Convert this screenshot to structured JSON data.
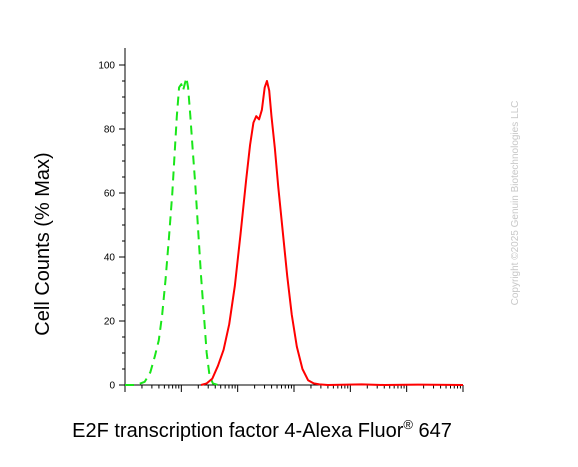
{
  "chart_data": {
    "type": "line",
    "xlabel": "E2F transcription factor 4-Alexa Fluor",
    "xlabel_sup": "®",
    "xlabel_suffix": " 647",
    "ylabel": "Cell Counts (% Max)",
    "ylim": [
      0,
      100
    ],
    "xlim": [
      0,
      6
    ],
    "x_scale": "log",
    "y_ticks": [
      "0",
      "20",
      "40",
      "60",
      "80",
      "100"
    ],
    "grid": false,
    "series": [
      {
        "color": "#19e619",
        "dash": "dashed",
        "points": [
          [
            0.0,
            0
          ],
          [
            0.2,
            0
          ],
          [
            0.35,
            1
          ],
          [
            0.45,
            4
          ],
          [
            0.53,
            9
          ],
          [
            0.6,
            14
          ],
          [
            0.66,
            22
          ],
          [
            0.72,
            33
          ],
          [
            0.78,
            46
          ],
          [
            0.84,
            60
          ],
          [
            0.88,
            72
          ],
          [
            0.92,
            84
          ],
          [
            0.96,
            93
          ],
          [
            1.0,
            94
          ],
          [
            1.03,
            92
          ],
          [
            1.06,
            94
          ],
          [
            1.09,
            96
          ],
          [
            1.12,
            93
          ],
          [
            1.16,
            84
          ],
          [
            1.2,
            74
          ],
          [
            1.25,
            62
          ],
          [
            1.3,
            48
          ],
          [
            1.35,
            34
          ],
          [
            1.4,
            22
          ],
          [
            1.45,
            10
          ],
          [
            1.5,
            3
          ],
          [
            1.56,
            0.5
          ],
          [
            1.65,
            0
          ]
        ]
      },
      {
        "color": "#ff0000",
        "dash": "solid",
        "points": [
          [
            1.35,
            0
          ],
          [
            1.45,
            0.5
          ],
          [
            1.55,
            2
          ],
          [
            1.65,
            6
          ],
          [
            1.75,
            11
          ],
          [
            1.85,
            19
          ],
          [
            1.95,
            31
          ],
          [
            2.05,
            47
          ],
          [
            2.15,
            64
          ],
          [
            2.22,
            75
          ],
          [
            2.28,
            82
          ],
          [
            2.33,
            84
          ],
          [
            2.38,
            83
          ],
          [
            2.43,
            86
          ],
          [
            2.48,
            93
          ],
          [
            2.52,
            95
          ],
          [
            2.56,
            92
          ],
          [
            2.6,
            84
          ],
          [
            2.66,
            74
          ],
          [
            2.72,
            62
          ],
          [
            2.8,
            48
          ],
          [
            2.88,
            34
          ],
          [
            2.96,
            22
          ],
          [
            3.05,
            12
          ],
          [
            3.15,
            5
          ],
          [
            3.25,
            1.5
          ],
          [
            3.35,
            0.5
          ],
          [
            3.45,
            0.2
          ],
          [
            3.6,
            0
          ],
          [
            4.2,
            0.2
          ],
          [
            4.6,
            0
          ],
          [
            5.2,
            0.1
          ],
          [
            6.0,
            0
          ]
        ]
      }
    ]
  },
  "watermark": "Copyright ©2025 Genuin Biotechnologies LLC"
}
